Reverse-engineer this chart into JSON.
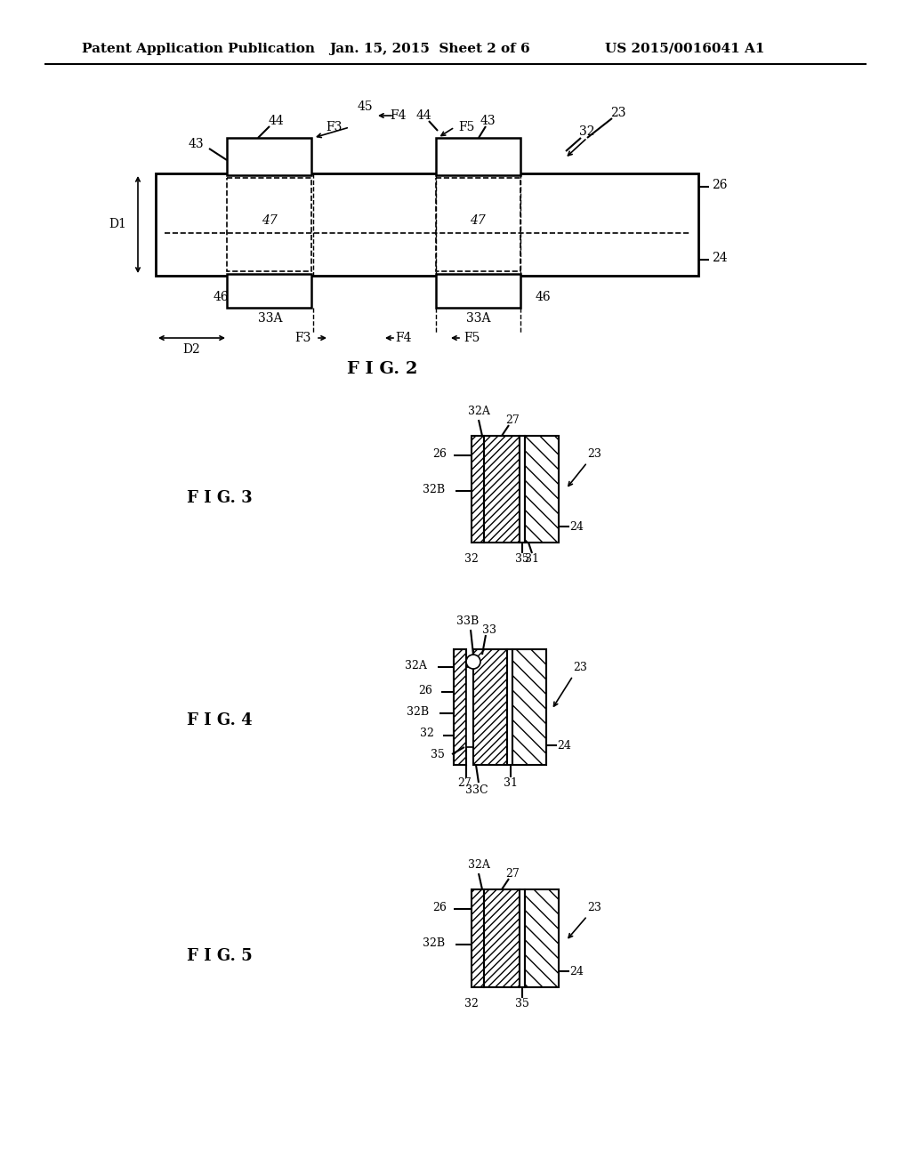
{
  "header_left": "Patent Application Publication",
  "header_mid": "Jan. 15, 2015  Sheet 2 of 6",
  "header_right": "US 2015/0016041 A1",
  "fig2_label": "F I G. 2",
  "fig3_label": "F I G. 3",
  "fig4_label": "F I G. 4",
  "fig5_label": "F I G. 5",
  "bg_color": "#ffffff",
  "line_color": "#000000"
}
